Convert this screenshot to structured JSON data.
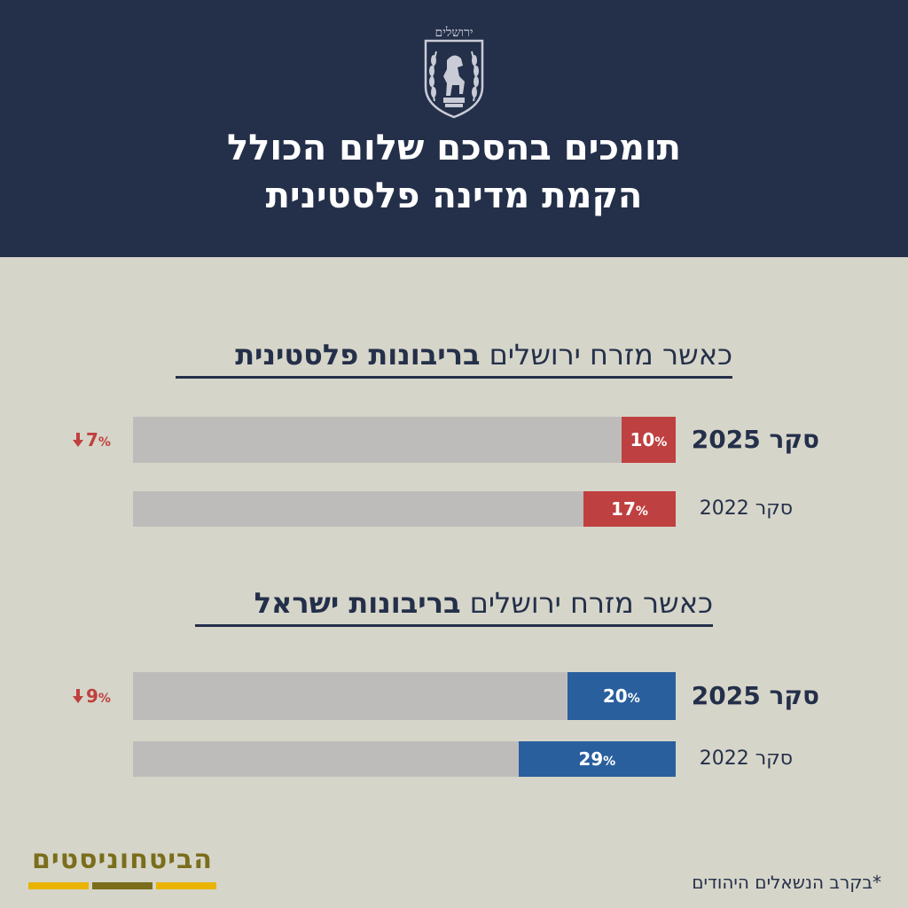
{
  "header": {
    "emblem_text": "ירושלים",
    "title_line1": "תומכים בהסכם שלום הכולל",
    "title_line2": "הקמת מדינה פלסטינית"
  },
  "chart_data": [
    {
      "type": "bar",
      "heading_normal": "כאשר מזרח ירושלים ",
      "heading_bold": "בריבונות פלסטינית",
      "categories": [
        "סקר 2025",
        "סקר 2022"
      ],
      "values": [
        10,
        17
      ],
      "value_suffix": "%",
      "color": "#bf4040",
      "change_label": "7",
      "change_direction": "down",
      "xlim": [
        0,
        100
      ]
    },
    {
      "type": "bar",
      "heading_normal": "כאשר מזרח ירושלים ",
      "heading_bold": "בריבונות ישראל",
      "categories": [
        "סקר 2025",
        "סקר 2022"
      ],
      "values": [
        20,
        29
      ],
      "value_suffix": "%",
      "color": "#2a5f9e",
      "change_label": "9",
      "change_direction": "down",
      "xlim": [
        0,
        100
      ]
    }
  ],
  "colors": {
    "header_bg": "#24304a",
    "page_bg": "#d6d5c9",
    "track": "#bdbcba",
    "change": "#c0403e",
    "logo_text": "#7a6e1c"
  },
  "footer": {
    "logo_text": "הביטחוניסטים",
    "footnote": "*בקרב הנשאלים היהודים"
  }
}
